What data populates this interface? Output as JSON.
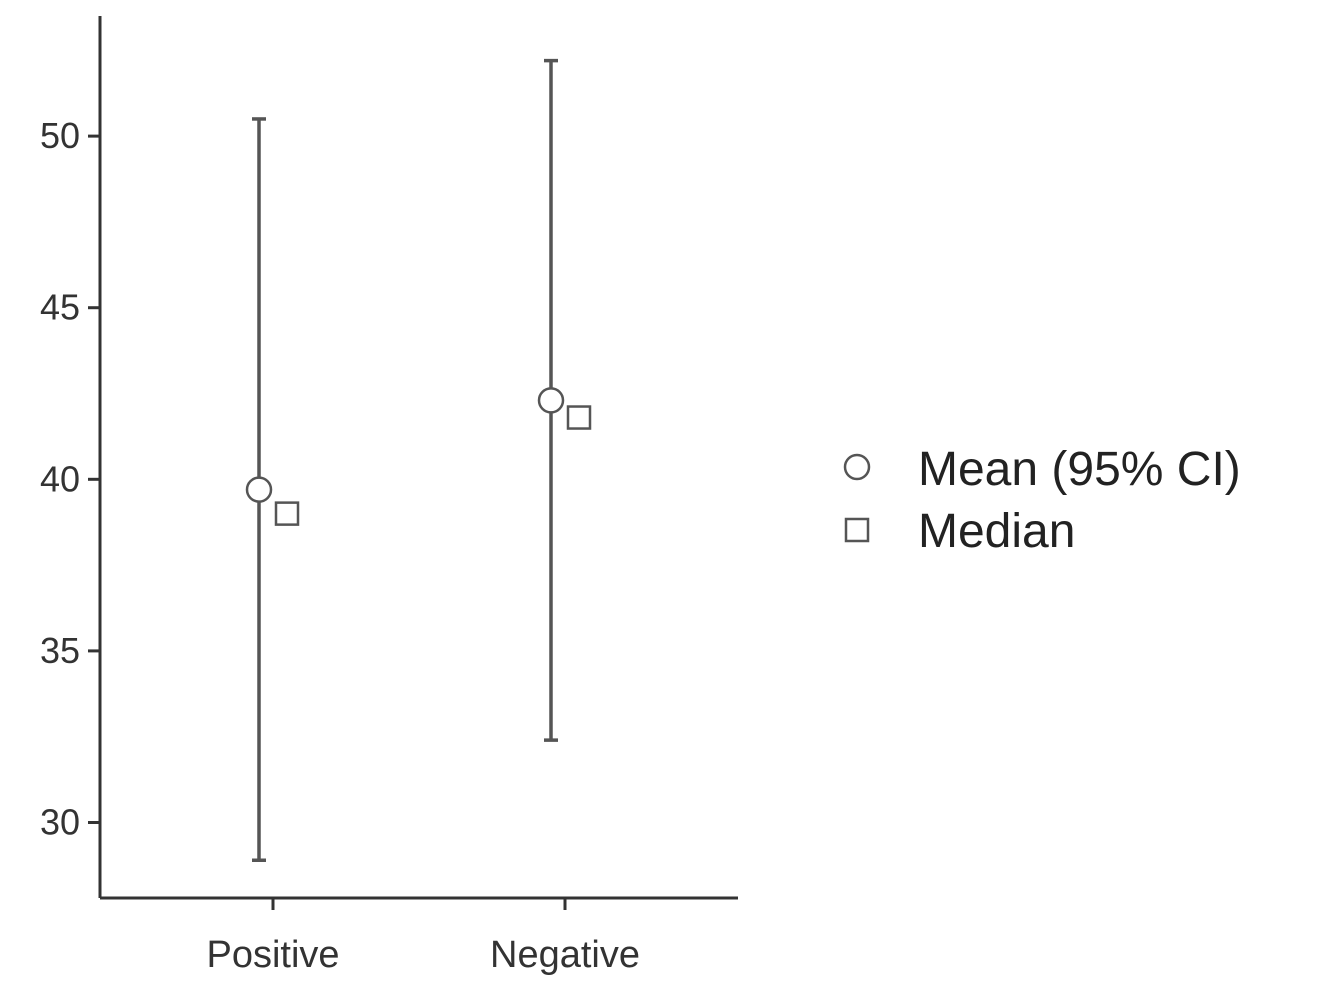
{
  "chart_data": {
    "type": "scatter",
    "title": "",
    "xlabel": "",
    "ylabel": "",
    "categories": [
      "Positive",
      "Negative"
    ],
    "ylim": [
      27.8,
      53.5
    ],
    "yticks": [
      30,
      35,
      40,
      45,
      50
    ],
    "grid": false,
    "legend_position": "right",
    "series": [
      {
        "name": "Mean (95% CI)",
        "marker": "circle",
        "values": [
          39.7,
          42.3
        ],
        "ci_lower": [
          28.9,
          32.4
        ],
        "ci_upper": [
          50.5,
          52.2
        ]
      },
      {
        "name": "Median",
        "marker": "square",
        "values": [
          39.0,
          41.8
        ]
      }
    ],
    "colors": {
      "axis": "#333333",
      "errorbar": "#555555",
      "marker_stroke": "#555555",
      "marker_fill": "#ffffff"
    }
  }
}
